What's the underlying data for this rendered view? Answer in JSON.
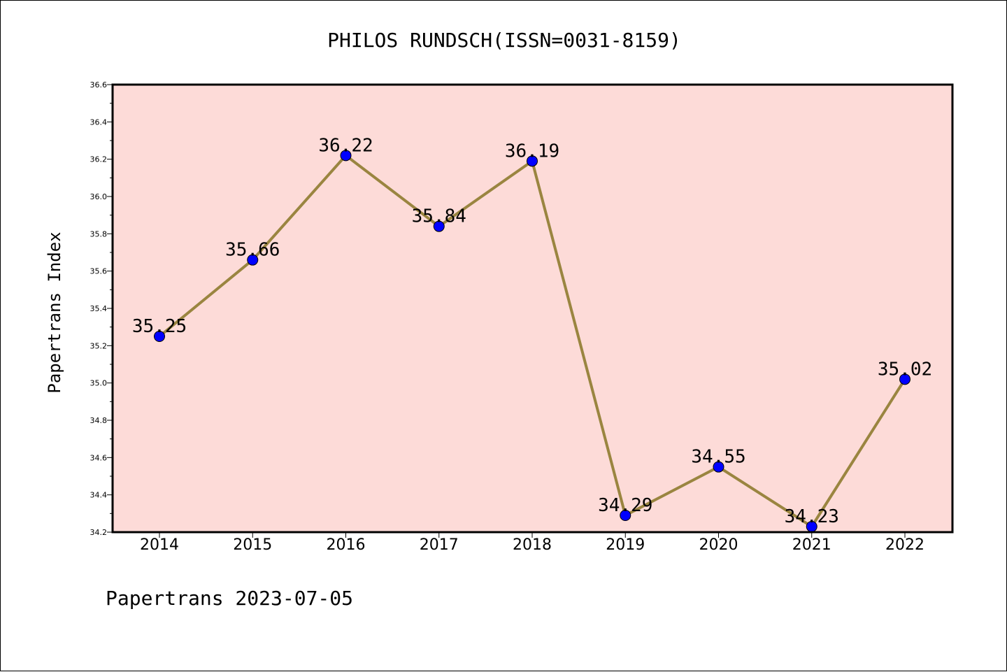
{
  "chart_data": {
    "type": "line",
    "title": "PHILOS RUNDSCH(ISSN=0031-8159)",
    "xlabel": "",
    "ylabel": "Papertrans Index",
    "categories": [
      "2014",
      "2015",
      "2016",
      "2017",
      "2018",
      "2019",
      "2020",
      "2021",
      "2022"
    ],
    "values": [
      35.25,
      35.66,
      36.22,
      35.84,
      36.19,
      34.29,
      34.55,
      34.23,
      35.02
    ],
    "data_labels": [
      "35.25",
      "35.66",
      "36.22",
      "35.84",
      "36.19",
      "34.29",
      "34.55",
      "34.23",
      "35.02"
    ],
    "ylim": [
      34.2,
      36.6
    ],
    "yticks": [
      "34.2",
      "34.4",
      "34.6",
      "34.8",
      "35.0",
      "35.2",
      "35.4",
      "35.6",
      "35.8",
      "36.0",
      "36.2",
      "36.4",
      "36.6"
    ],
    "grid": false,
    "legend": "none",
    "colors": {
      "plot_background": "#fddbd8",
      "line": "#9a8540",
      "marker": "#0000ff"
    }
  },
  "footer": "Papertrans 2023-07-05"
}
